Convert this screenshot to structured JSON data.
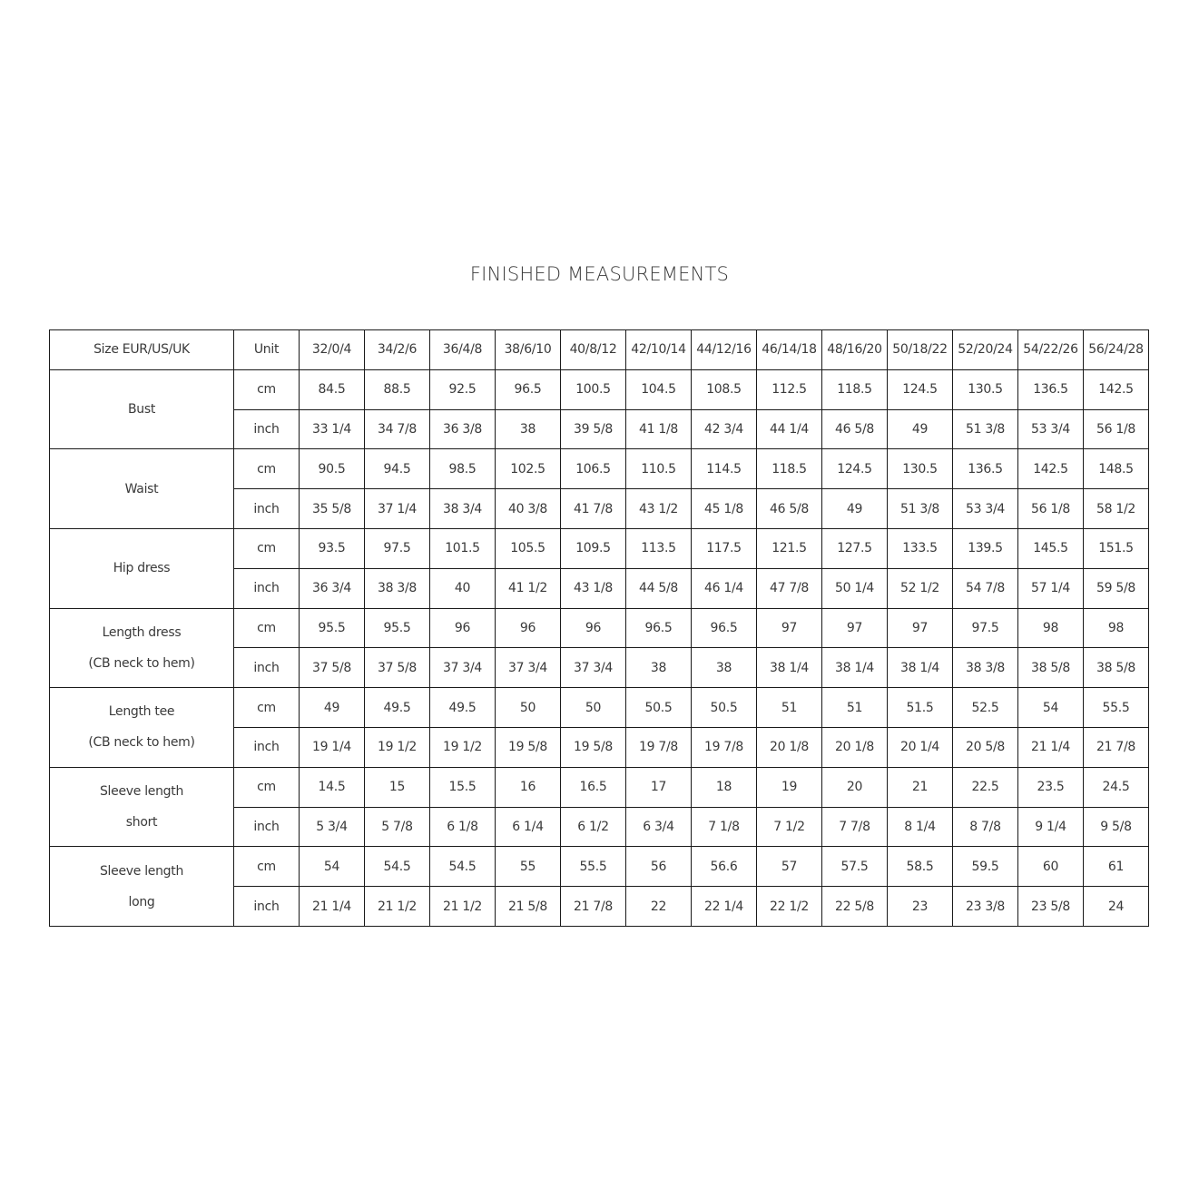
{
  "title": "FINISHED MEASUREMENTS",
  "table": {
    "header": {
      "label": "Size EUR/US/UK",
      "unit": "Unit",
      "sizes": [
        "32/0/4",
        "34/2/6",
        "36/4/8",
        "38/6/10",
        "40/8/12",
        "42/10/14",
        "44/12/16",
        "46/14/18",
        "48/16/20",
        "50/18/22",
        "52/20/24",
        "54/22/26",
        "56/24/28"
      ]
    },
    "groups": [
      {
        "label_lines": [
          "Bust"
        ],
        "rows": [
          {
            "unit": "cm",
            "values": [
              "84.5",
              "88.5",
              "92.5",
              "96.5",
              "100.5",
              "104.5",
              "108.5",
              "112.5",
              "118.5",
              "124.5",
              "130.5",
              "136.5",
              "142.5"
            ]
          },
          {
            "unit": "inch",
            "values": [
              "33 1/4",
              "34 7/8",
              "36 3/8",
              "38",
              "39 5/8",
              "41 1/8",
              "42 3/4",
              "44 1/4",
              "46 5/8",
              "49",
              "51 3/8",
              "53 3/4",
              "56 1/8"
            ]
          }
        ]
      },
      {
        "label_lines": [
          "Waist"
        ],
        "rows": [
          {
            "unit": "cm",
            "values": [
              "90.5",
              "94.5",
              "98.5",
              "102.5",
              "106.5",
              "110.5",
              "114.5",
              "118.5",
              "124.5",
              "130.5",
              "136.5",
              "142.5",
              "148.5"
            ]
          },
          {
            "unit": "inch",
            "values": [
              "35 5/8",
              "37 1/4",
              "38 3/4",
              "40 3/8",
              "41 7/8",
              "43 1/2",
              "45 1/8",
              "46 5/8",
              "49",
              "51 3/8",
              "53 3/4",
              "56 1/8",
              "58 1/2"
            ]
          }
        ]
      },
      {
        "label_lines": [
          "Hip dress"
        ],
        "rows": [
          {
            "unit": "cm",
            "values": [
              "93.5",
              "97.5",
              "101.5",
              "105.5",
              "109.5",
              "113.5",
              "117.5",
              "121.5",
              "127.5",
              "133.5",
              "139.5",
              "145.5",
              "151.5"
            ]
          },
          {
            "unit": "inch",
            "values": [
              "36 3/4",
              "38 3/8",
              "40",
              "41 1/2",
              "43 1/8",
              "44 5/8",
              "46 1/4",
              "47 7/8",
              "50 1/4",
              "52 1/2",
              "54 7/8",
              "57 1/4",
              "59 5/8"
            ]
          }
        ]
      },
      {
        "label_lines": [
          "Length dress",
          "(CB neck to hem)"
        ],
        "rows": [
          {
            "unit": "cm",
            "values": [
              "95.5",
              "95.5",
              "96",
              "96",
              "96",
              "96.5",
              "96.5",
              "97",
              "97",
              "97",
              "97.5",
              "98",
              "98"
            ]
          },
          {
            "unit": "inch",
            "values": [
              "37 5/8",
              "37 5/8",
              "37 3/4",
              "37 3/4",
              "37 3/4",
              "38",
              "38",
              "38 1/4",
              "38 1/4",
              "38 1/4",
              "38 3/8",
              "38 5/8",
              "38 5/8"
            ]
          }
        ]
      },
      {
        "label_lines": [
          "Length tee",
          "(CB neck to hem)"
        ],
        "rows": [
          {
            "unit": "cm",
            "values": [
              "49",
              "49.5",
              "49.5",
              "50",
              "50",
              "50.5",
              "50.5",
              "51",
              "51",
              "51.5",
              "52.5",
              "54",
              "55.5"
            ]
          },
          {
            "unit": "inch",
            "values": [
              "19 1/4",
              "19 1/2",
              "19 1/2",
              "19 5/8",
              "19 5/8",
              "19 7/8",
              "19 7/8",
              "20 1/8",
              "20 1/8",
              "20 1/4",
              "20 5/8",
              "21 1/4",
              "21 7/8"
            ]
          }
        ]
      },
      {
        "label_lines": [
          "Sleeve length",
          "short"
        ],
        "rows": [
          {
            "unit": "cm",
            "values": [
              "14.5",
              "15",
              "15.5",
              "16",
              "16.5",
              "17",
              "18",
              "19",
              "20",
              "21",
              "22.5",
              "23.5",
              "24.5"
            ]
          },
          {
            "unit": "inch",
            "values": [
              "5 3/4",
              "5 7/8",
              "6 1/8",
              "6 1/4",
              "6 1/2",
              "6 3/4",
              "7 1/8",
              "7 1/2",
              "7 7/8",
              "8 1/4",
              "8 7/8",
              "9 1/4",
              "9 5/8"
            ]
          }
        ]
      },
      {
        "label_lines": [
          "Sleeve length",
          "long"
        ],
        "rows": [
          {
            "unit": "cm",
            "values": [
              "54",
              "54.5",
              "54.5",
              "55",
              "55.5",
              "56",
              "56.6",
              "57",
              "57.5",
              "58.5",
              "59.5",
              "60",
              "61"
            ]
          },
          {
            "unit": "inch",
            "values": [
              "21 1/4",
              "21 1/2",
              "21 1/2",
              "21 5/8",
              "21 7/8",
              "22",
              "22 1/4",
              "22 1/2",
              "22 5/8",
              "23",
              "23 3/8",
              "23 5/8",
              "24"
            ]
          }
        ]
      }
    ]
  }
}
